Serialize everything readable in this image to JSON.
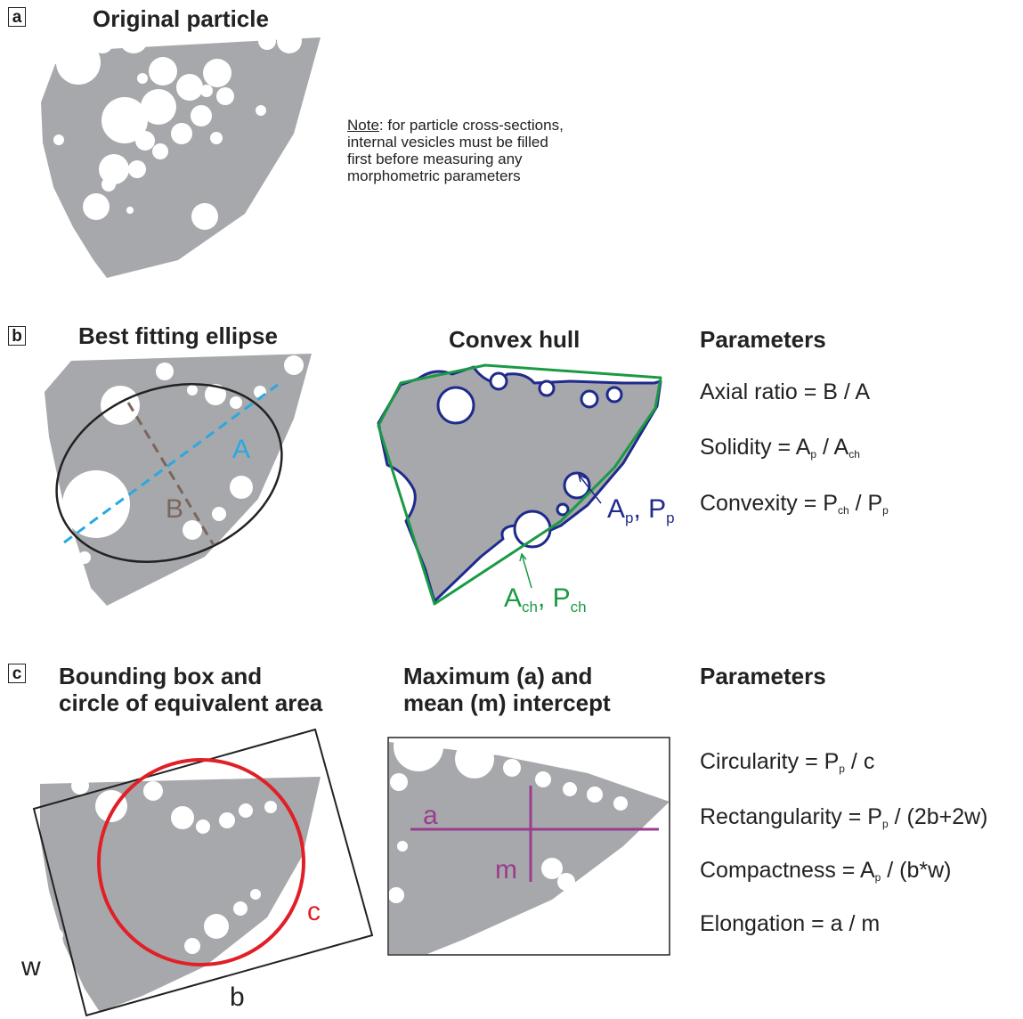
{
  "colors": {
    "particle": "#a6a8ab",
    "ellipse": "#222222",
    "axis_a": "#2aa8e0",
    "axis_b": "#7b665c",
    "hull": "#1b9a45",
    "outline": "#1f2a8c",
    "circle": "#e11f26",
    "intercept": "#9b3c8f"
  },
  "panel_a": {
    "label": "a",
    "title": "Original particle",
    "note_underlined": "Note",
    "note_rest": ": for particle cross-sections,",
    "note_line2": "internal vesicles must be filled",
    "note_line3": "first before measuring any",
    "note_line4": "morphometric parameters"
  },
  "panel_b": {
    "label": "b",
    "ellipse_title": "Best fitting ellipse",
    "axis_a_label": "A",
    "axis_b_label": "B",
    "hull_title": "Convex hull",
    "ap_main": "A",
    "ap_sub": "p",
    "pp_main": ", P",
    "pp_sub": "p",
    "ach_main": "A",
    "ach_sub": "ch",
    "pch_main": ", P",
    "pch_sub": "ch",
    "params_title": "Parameters",
    "params": [
      {
        "text": "Axial ratio = B / A"
      },
      {
        "t1": "Solidity = A",
        "s1": "p",
        "t2": " / A",
        "s2": "ch"
      },
      {
        "t1": "Convexity = P",
        "s1": "ch",
        "t2": " / P",
        "s2": "p"
      }
    ]
  },
  "panel_c": {
    "label": "c",
    "box_title_line1": "Bounding box and",
    "box_title_line2": "circle of equivalent area",
    "label_w": "w",
    "label_b": "b",
    "label_c": "c",
    "intercept_title_line1": "Maximum (a) and",
    "intercept_title_line2": "mean (m) intercept",
    "label_a": "a",
    "label_m": "m",
    "params_title": "Parameters",
    "params": [
      {
        "t1": "Circularity = P",
        "s1": "p",
        "t2": " / c"
      },
      {
        "t1": "Rectangularity = P",
        "s1": "p",
        "t2": " / (2b+2w)"
      },
      {
        "t1": "Compactness = A",
        "s1": "p",
        "t2": " / (b*w)"
      },
      {
        "text": "Elongation = a / m"
      }
    ]
  }
}
